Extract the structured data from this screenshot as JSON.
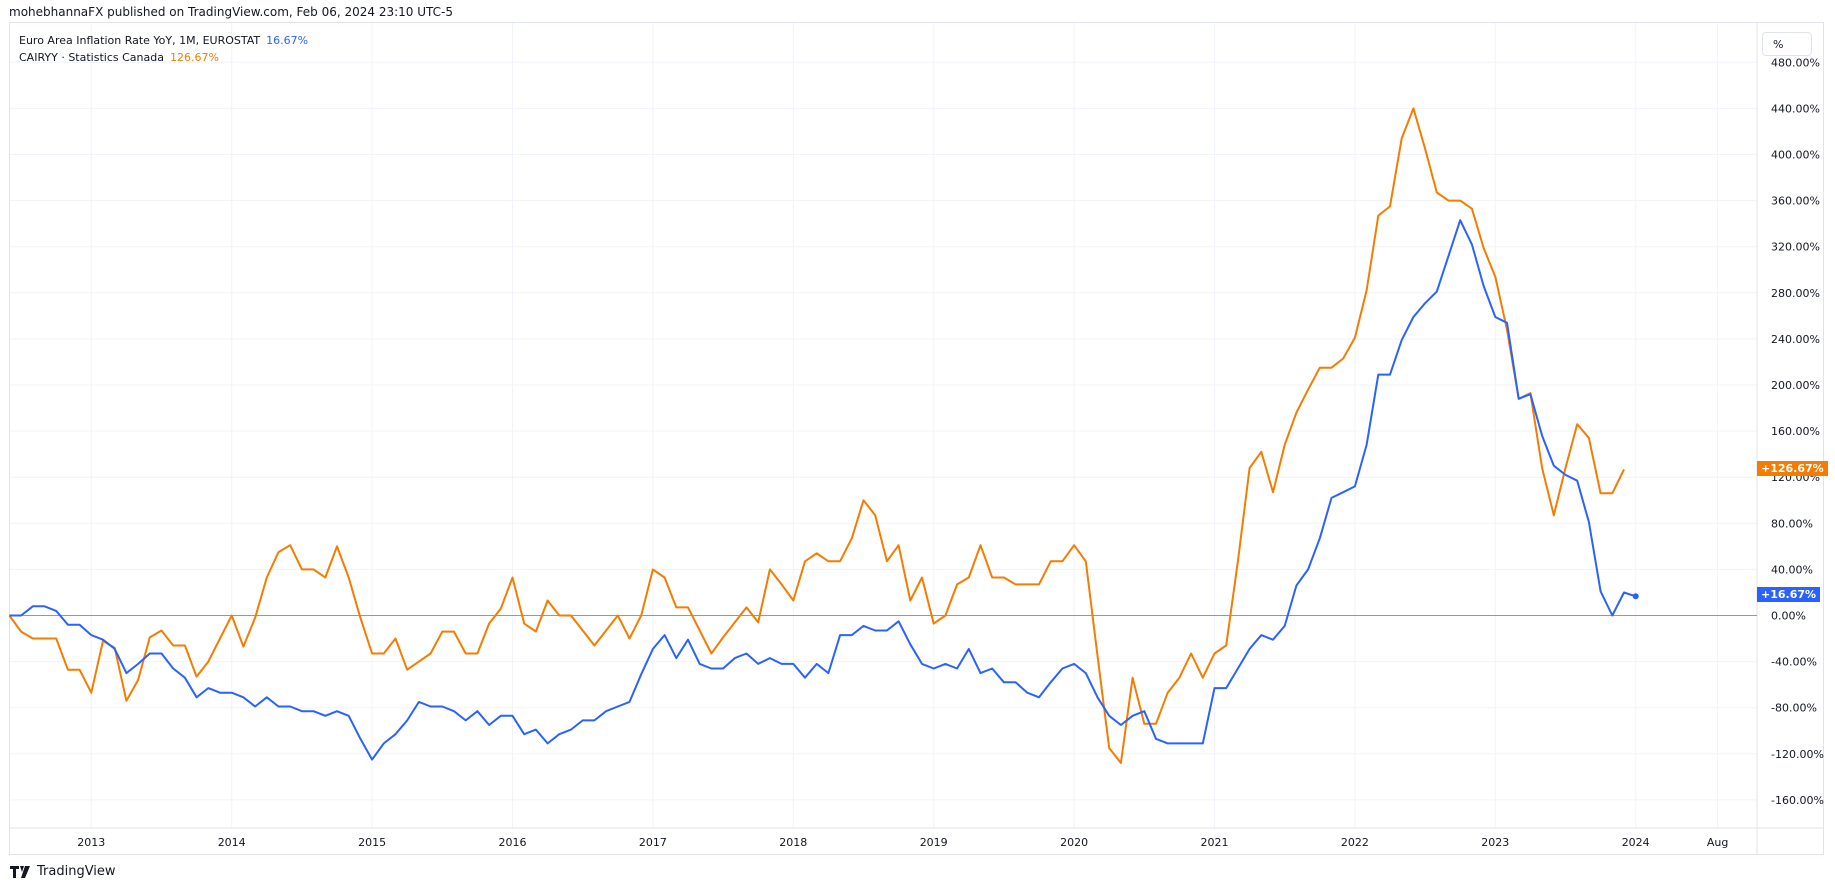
{
  "header": {
    "published": "mohebhannaFX published on TradingView.com, Feb 06, 2024 23:10 UTC-5"
  },
  "legend": [
    {
      "label": "Euro Area Inflation Rate YoY, 1M, EUROSTAT",
      "value": "16.67%",
      "color": "#2962ff"
    },
    {
      "label": "CAIRYY · Statistics Canada",
      "value": "126.67%",
      "color": "#f57c00"
    }
  ],
  "price_axis": {
    "unit_button": "%"
  },
  "last_labels": {
    "blue": "+16.67%",
    "orange": "+126.67%"
  },
  "footer": {
    "brand": "TradingView"
  },
  "chart_data": {
    "type": "line",
    "x_start": "2012-06",
    "frequency": "monthly",
    "ylim": [
      -180,
      480
    ],
    "grid": true,
    "legend_placement": "top-left",
    "y_ticks": [
      "480.00%",
      "440.00%",
      "400.00%",
      "360.00%",
      "320.00%",
      "280.00%",
      "240.00%",
      "200.00%",
      "160.00%",
      "120.00%",
      "80.00%",
      "40.00%",
      "0.00%",
      "-40.00%",
      "-80.00%",
      "-120.00%",
      "-160.00%"
    ],
    "y_tick_values": [
      480,
      440,
      400,
      360,
      320,
      280,
      240,
      200,
      160,
      120,
      80,
      40,
      0,
      -40,
      -80,
      -120,
      -160
    ],
    "x_ticks": [
      "2013",
      "2014",
      "2015",
      "2016",
      "2017",
      "2018",
      "2019",
      "2020",
      "2021",
      "2022",
      "2023",
      "2024",
      "Aug"
    ],
    "series": [
      {
        "name": "Euro Area Inflation Rate YoY, 1M, EUROSTAT",
        "color": "#2962ff",
        "values": [
          0,
          0,
          8,
          8,
          4,
          -8,
          -8,
          -17,
          -21,
          -29,
          -50,
          -42,
          -33,
          -33,
          -46,
          -54,
          -71,
          -63,
          -67,
          -67,
          -71,
          -79,
          -71,
          -79,
          -79,
          -83,
          -83,
          -87,
          -83,
          -87,
          -107,
          -125,
          -111,
          -103,
          -91,
          -75,
          -79,
          -79,
          -83,
          -91,
          -83,
          -95,
          -87,
          -87,
          -103,
          -99,
          -111,
          -103,
          -99,
          -91,
          -91,
          -83,
          -79,
          -75,
          -51,
          -29,
          -17,
          -37,
          -21,
          -42,
          -46,
          -46,
          -37,
          -33,
          -42,
          -37,
          -42,
          -42,
          -54,
          -42,
          -50,
          -17,
          -17,
          -9,
          -13,
          -13,
          -5,
          -25,
          -42,
          -46,
          -42,
          -46,
          -29,
          -50,
          -46,
          -58,
          -58,
          -67,
          -71,
          -58,
          -46,
          -42,
          -50,
          -71,
          -87,
          -95,
          -87,
          -83,
          -107,
          -111,
          -111,
          -111,
          -111,
          -63,
          -63,
          -46,
          -29,
          -17,
          -21,
          -9,
          26,
          40,
          67,
          102,
          107,
          112,
          148,
          209,
          209,
          239,
          259,
          271,
          281,
          312,
          343,
          322,
          286,
          259,
          254,
          188,
          192,
          156,
          130,
          122,
          117,
          81,
          21,
          0,
          20,
          16.67
        ]
      },
      {
        "name": "CAIRYY · Statistics Canada",
        "color": "#f57c00",
        "values": [
          0,
          -14,
          -20,
          -20,
          -20,
          -47,
          -47,
          -67,
          -22,
          -28,
          -74,
          -56,
          -19,
          -13,
          -26,
          -26,
          -53,
          -40,
          -20,
          0,
          -27,
          -2,
          33,
          55,
          61,
          40,
          40,
          33,
          60,
          33,
          -2,
          -33,
          -33,
          -20,
          -47,
          -40,
          -33,
          -14,
          -14,
          -33,
          -33,
          -7,
          6,
          33,
          -7,
          -14,
          13,
          0,
          0,
          -13,
          -26,
          -13,
          0,
          -20,
          0,
          40,
          33,
          7,
          7,
          -13,
          -33,
          -19,
          -6,
          7,
          -6,
          40,
          27,
          13,
          47,
          54,
          47,
          47,
          67,
          100,
          87,
          47,
          61,
          13,
          33,
          -7,
          0,
          27,
          33,
          61,
          33,
          33,
          27,
          27,
          27,
          47,
          47,
          61,
          47,
          -35,
          -115,
          -128,
          -54,
          -94,
          -94,
          -67,
          -54,
          -33,
          -54,
          -33,
          -26,
          47,
          128,
          142,
          107,
          148,
          176,
          196,
          215,
          215,
          223,
          241,
          282,
          347,
          355,
          414,
          440,
          405,
          367,
          360,
          360,
          353,
          319,
          294,
          248,
          188,
          193,
          128,
          87,
          128,
          166,
          154,
          106,
          106,
          126.67
        ]
      }
    ]
  }
}
